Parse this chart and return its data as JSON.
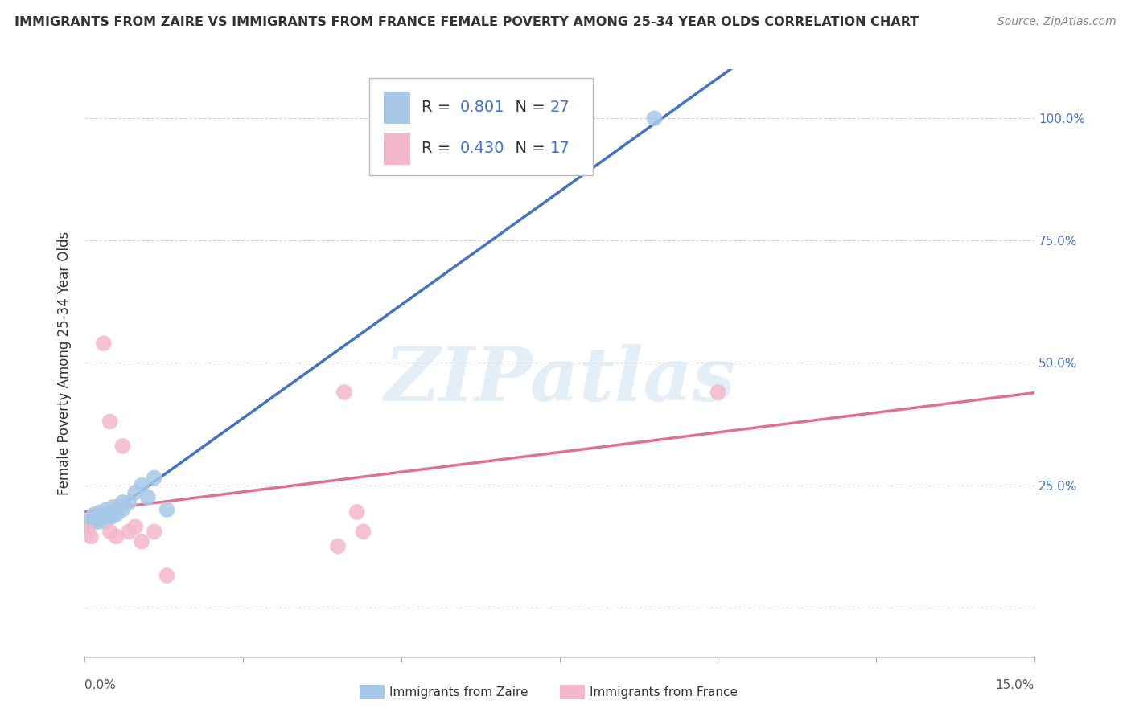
{
  "title": "IMMIGRANTS FROM ZAIRE VS IMMIGRANTS FROM FRANCE FEMALE POVERTY AMONG 25-34 YEAR OLDS CORRELATION CHART",
  "source": "Source: ZipAtlas.com",
  "ylabel": "Female Poverty Among 25-34 Year Olds",
  "xlim": [
    0.0,
    0.15
  ],
  "ylim": [
    -0.1,
    1.1
  ],
  "xtick_positions": [
    0.0,
    0.025,
    0.05,
    0.075,
    0.1,
    0.125,
    0.15
  ],
  "ytick_positions": [
    0.0,
    0.25,
    0.5,
    0.75,
    1.0
  ],
  "right_yticklabels": [
    "",
    "25.0%",
    "50.0%",
    "75.0%",
    "100.0%"
  ],
  "zaire_color": "#A8C8E8",
  "france_color": "#F4B8CC",
  "zaire_line_color": "#4472C4",
  "france_line_color": "#E07090",
  "zaire_R": "0.801",
  "zaire_N": "27",
  "france_R": "0.430",
  "france_N": "17",
  "watermark_text": "ZIPatlas",
  "background_color": "#ffffff",
  "zaire_x": [
    0.0005,
    0.001,
    0.0012,
    0.0015,
    0.002,
    0.002,
    0.0025,
    0.003,
    0.003,
    0.0032,
    0.0035,
    0.004,
    0.004,
    0.0042,
    0.0045,
    0.005,
    0.005,
    0.0055,
    0.006,
    0.006,
    0.007,
    0.008,
    0.009,
    0.01,
    0.011,
    0.013,
    0.09
  ],
  "zaire_y": [
    0.165,
    0.18,
    0.175,
    0.19,
    0.185,
    0.175,
    0.195,
    0.185,
    0.19,
    0.175,
    0.2,
    0.19,
    0.195,
    0.185,
    0.205,
    0.195,
    0.19,
    0.205,
    0.2,
    0.215,
    0.215,
    0.235,
    0.25,
    0.225,
    0.265,
    0.2,
    1.0
  ],
  "france_x": [
    0.0005,
    0.001,
    0.003,
    0.004,
    0.004,
    0.005,
    0.006,
    0.007,
    0.008,
    0.009,
    0.011,
    0.013,
    0.04,
    0.041,
    0.043,
    0.044,
    0.1
  ],
  "france_y": [
    0.155,
    0.145,
    0.54,
    0.38,
    0.155,
    0.145,
    0.33,
    0.155,
    0.165,
    0.135,
    0.155,
    0.065,
    0.125,
    0.44,
    0.195,
    0.155,
    0.44
  ],
  "legend_box_facecolor": "#FFFFFF",
  "legend_box_edgecolor": "#BBBBBB",
  "title_fontsize": 11.5,
  "source_fontsize": 10,
  "legend_fontsize": 14,
  "axis_label_fontsize": 12,
  "tick_fontsize": 11,
  "legend_text_color": "#333333",
  "legend_number_color": "#4472C4"
}
